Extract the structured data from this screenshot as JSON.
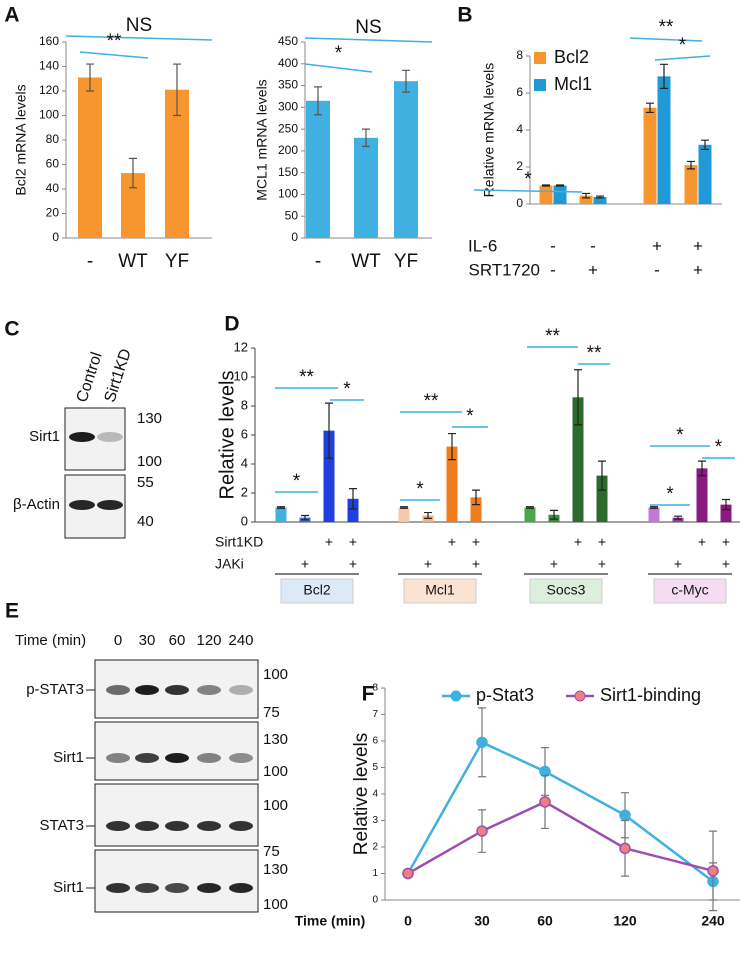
{
  "panel_labels": [
    "A",
    "B",
    "C",
    "D",
    "E",
    "F"
  ],
  "chart_data": [
    {
      "type": "bar",
      "ylabel": "Bcl2 mRNA levels",
      "categories": [
        "-",
        "WT",
        "YF"
      ],
      "values": [
        131,
        53,
        121
      ],
      "errors": [
        11,
        12,
        21
      ],
      "color": "#f7952e",
      "ylim": [
        0,
        160
      ],
      "yticks": [
        0,
        20,
        40,
        60,
        80,
        100,
        120,
        140,
        160
      ],
      "annotations": [
        "NS",
        "**"
      ]
    },
    {
      "type": "bar",
      "ylabel": "MCL1 mRNA levels",
      "categories": [
        "-",
        "WT",
        "YF"
      ],
      "values": [
        315,
        230,
        360
      ],
      "errors": [
        32,
        20,
        25
      ],
      "color": "#3fb0e0",
      "ylim": [
        0,
        450
      ],
      "yticks": [
        0,
        50,
        100,
        150,
        200,
        250,
        300,
        350,
        400,
        450
      ],
      "annotations": [
        "NS",
        "*"
      ]
    },
    {
      "type": "grouped-bar",
      "ylabel": "Relative mRNA levels",
      "legend": "upper left",
      "series": [
        {
          "name": "Bcl2",
          "color": "#f7952e",
          "values": [
            1,
            0.45,
            5.2,
            2.1
          ],
          "errors": [
            0.03,
            0.12,
            0.25,
            0.2
          ]
        },
        {
          "name": "Mcl1",
          "color": "#1f9ad6",
          "values": [
            1,
            0.38,
            6.9,
            3.2
          ],
          "errors": [
            0.03,
            0.05,
            0.65,
            0.25
          ]
        }
      ],
      "rows": [
        {
          "name": "IL-6",
          "marks": [
            "-",
            "-",
            "+",
            "+"
          ]
        },
        {
          "name": "SRT1720",
          "marks": [
            "-",
            "+",
            "-",
            "+"
          ]
        }
      ],
      "ylim": [
        0,
        8
      ],
      "yticks": [
        0,
        2,
        4,
        6,
        8
      ],
      "annotations": [
        "*",
        "**",
        "*"
      ]
    },
    {
      "type": "grouped-bar",
      "ylabel": "Relative levels",
      "ylim": [
        0,
        12
      ],
      "yticks": [
        0,
        2,
        4,
        6,
        8,
        10,
        12
      ],
      "rows": [
        {
          "name": "Sirt1KD",
          "marks": [
            null,
            null,
            "+",
            "+"
          ]
        },
        {
          "name": "JAKi",
          "marks": [
            null,
            "+",
            null,
            "+"
          ]
        }
      ],
      "groups": [
        {
          "name": "Bcl2",
          "box_color": "#dce9f7",
          "colors": [
            "#3fb0e0",
            "#3a6ec8",
            "#1f3fe0",
            "#1f3fe0"
          ],
          "values": [
            1,
            0.3,
            6.3,
            1.6
          ],
          "errors": [
            0.05,
            0.15,
            1.9,
            0.7
          ],
          "annotations": [
            "*",
            "**",
            "*"
          ]
        },
        {
          "name": "Mcl1",
          "box_color": "#fbe3d4",
          "colors": [
            "#f9c9a6",
            "#f7b080",
            "#f07c1e",
            "#f07c1e"
          ],
          "values": [
            1,
            0.45,
            5.2,
            1.7
          ],
          "errors": [
            0.05,
            0.2,
            0.9,
            0.5
          ],
          "annotations": [
            "*",
            "**",
            "*"
          ]
        },
        {
          "name": "Socs3",
          "box_color": "#dcefdc",
          "colors": [
            "#4aa84a",
            "#3d8a3d",
            "#2d6a2d",
            "#2d6a2d"
          ],
          "values": [
            1,
            0.5,
            8.6,
            3.2
          ],
          "errors": [
            0.05,
            0.3,
            1.9,
            1.0
          ],
          "annotations": [
            "**",
            "**"
          ]
        },
        {
          "name": "c-Myc",
          "box_color": "#f6dcf3",
          "colors": [
            "#c07ad6",
            "#9a3a9a",
            "#8a1a80",
            "#8a1a80"
          ],
          "values": [
            1,
            0.3,
            3.7,
            1.2
          ],
          "errors": [
            0.05,
            0.1,
            0.5,
            0.35
          ],
          "annotations": [
            "*",
            "*",
            "*"
          ]
        }
      ]
    },
    {
      "type": "line",
      "ylabel": "Relative levels",
      "xlabel": "Time (min)",
      "categories": [
        "0",
        "30",
        "60",
        "120",
        "240"
      ],
      "legend": "top",
      "series": [
        {
          "name": "p-Stat3",
          "color": "#3fb0e0",
          "values": [
            1,
            5.95,
            4.85,
            3.2,
            0.7
          ],
          "errors": [
            0,
            1.3,
            0.9,
            0.85,
            0.7
          ]
        },
        {
          "name": "Sirt1-binding",
          "color": "#9b4fb0",
          "values": [
            1,
            2.6,
            3.7,
            1.95,
            1.1
          ],
          "errors": [
            0,
            0.8,
            1.0,
            1.05,
            1.5
          ]
        }
      ],
      "ylim": [
        0,
        8
      ],
      "yticks": [
        0,
        1,
        2,
        3,
        4,
        5,
        6,
        7,
        8
      ]
    }
  ],
  "blots": [
    {
      "lanes": [
        "Control",
        "Sirt1KD"
      ],
      "rows": [
        {
          "label": "Sirt1",
          "markers": [
            "130",
            "100"
          ]
        },
        {
          "label": "β-Actin",
          "markers": [
            "55",
            "40"
          ]
        }
      ]
    },
    {
      "time_label": "Time (min)",
      "lanes": [
        "0",
        "30",
        "60",
        "120",
        "240"
      ],
      "rows": [
        {
          "label": "p-STAT3",
          "markers": [
            "100",
            "75"
          ]
        },
        {
          "label": "Sirt1",
          "markers": [
            "130",
            "100"
          ]
        },
        {
          "label": "STAT3",
          "markers": [
            "100",
            "75"
          ]
        },
        {
          "label": "Sirt1",
          "markers": [
            "130",
            "100"
          ]
        }
      ]
    }
  ]
}
